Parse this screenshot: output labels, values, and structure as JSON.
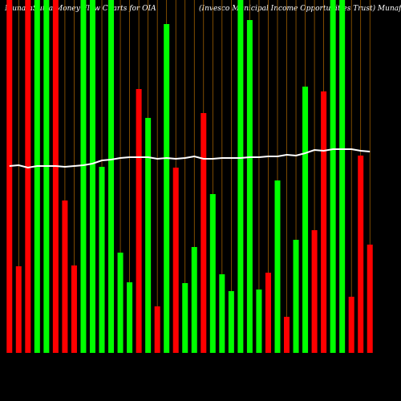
{
  "chart_data": {
    "type": "bar",
    "title": "MunafaSutra Money Flow Charts for OIA",
    "subtitle": "(Invesco Municipal Income Opportunities Trust) MunafaSutra.com",
    "categories": [
      null,
      null,
      null,
      null,
      null,
      null,
      null,
      null,
      null,
      null,
      null,
      null,
      null,
      null,
      null,
      null,
      null,
      null,
      null,
      null,
      null,
      null,
      null,
      null,
      null,
      null,
      null,
      null,
      null,
      null,
      null,
      null,
      null,
      null,
      null,
      null,
      null,
      null,
      null,
      null
    ],
    "series": [
      {
        "color": "#ff0000",
        "up_color": "#00ff00",
        "directions": [
          "down",
          "down",
          "down",
          "up",
          "up",
          "down",
          "down",
          "down",
          "up",
          "up",
          "up",
          "up",
          "up",
          "up",
          "down",
          "up",
          "down",
          "up",
          "down",
          "up",
          "up",
          "down",
          "up",
          "up",
          "up",
          "up",
          "up",
          "up",
          "down",
          "up",
          "down",
          "up",
          "up",
          "down",
          "down",
          "up",
          "up",
          "down",
          "down",
          "down"
        ],
        "values": [
          440,
          108,
          440,
          440,
          440,
          440,
          190,
          109,
          440,
          440,
          232,
          440,
          125,
          88,
          329,
          293,
          58,
          410,
          231,
          87,
          132,
          299,
          198,
          98,
          77,
          440,
          415,
          79,
          100,
          215,
          45,
          141,
          332,
          153,
          326,
          440,
          440,
          70,
          246,
          135
        ]
      },
      {
        "type": "line",
        "color": "#ffffff",
        "values": [
          233,
          234,
          231,
          233,
          233,
          233,
          232,
          233,
          234,
          236,
          240,
          241,
          243,
          244,
          244,
          244,
          242,
          243,
          242,
          243,
          245,
          242,
          242,
          243,
          243,
          243,
          244,
          244,
          245,
          245,
          247,
          246,
          249,
          253,
          252,
          254,
          254,
          254,
          252,
          251
        ]
      }
    ],
    "ylim": [
      0,
      440
    ],
    "grid": true,
    "grid_color": "#b36b00"
  }
}
